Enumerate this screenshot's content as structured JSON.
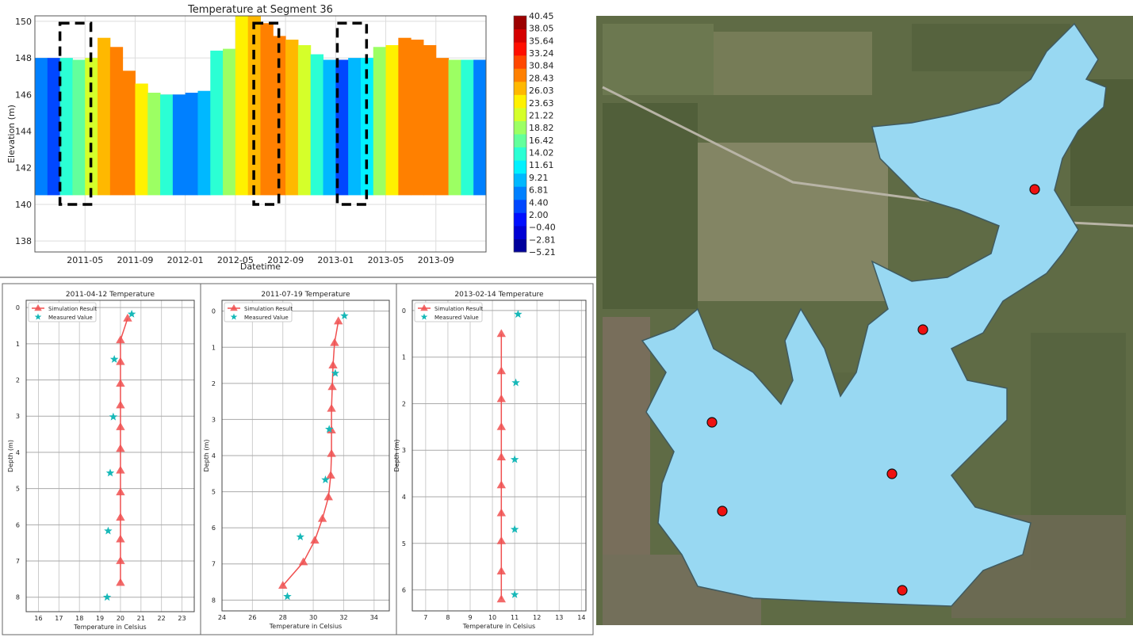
{
  "chart_data": [
    {
      "type": "heatmap",
      "title": "Temperature at Segment 36",
      "xlabel": "Datetime",
      "ylabel": "Elevation (m)",
      "xlim": [
        "2011-01",
        "2014-01"
      ],
      "ylim": [
        137.4,
        150.3
      ],
      "x_ticks": [
        "2011-05",
        "2011-09",
        "2012-01",
        "2012-05",
        "2012-09",
        "2013-01",
        "2013-05",
        "2013-09"
      ],
      "y_ticks": [
        138,
        140,
        142,
        144,
        146,
        148,
        150
      ],
      "grid": true,
      "bottom_elevation": 140.5,
      "columns": [
        {
          "date": "2011-01",
          "surface_elevation": 148.0,
          "temperature": 5
        },
        {
          "date": "2011-02",
          "surface_elevation": 148.0,
          "temperature": 3
        },
        {
          "date": "2011-03",
          "surface_elevation": 148.0,
          "temperature": 14
        },
        {
          "date": "2011-04",
          "surface_elevation": 147.9,
          "temperature": 17
        },
        {
          "date": "2011-05",
          "surface_elevation": 148.0,
          "temperature": 22
        },
        {
          "date": "2011-06",
          "surface_elevation": 149.1,
          "temperature": 27
        },
        {
          "date": "2011-07",
          "surface_elevation": 148.6,
          "temperature": 30
        },
        {
          "date": "2011-08",
          "surface_elevation": 147.3,
          "temperature": 30
        },
        {
          "date": "2011-09",
          "surface_elevation": 146.6,
          "temperature": 25
        },
        {
          "date": "2011-10",
          "surface_elevation": 146.1,
          "temperature": 20
        },
        {
          "date": "2011-11",
          "surface_elevation": 146.0,
          "temperature": 15
        },
        {
          "date": "2011-12",
          "surface_elevation": 146.0,
          "temperature": 7
        },
        {
          "date": "2012-01",
          "surface_elevation": 146.1,
          "temperature": 5
        },
        {
          "date": "2012-02",
          "surface_elevation": 146.2,
          "temperature": 10
        },
        {
          "date": "2012-03",
          "surface_elevation": 148.4,
          "temperature": 13
        },
        {
          "date": "2012-04",
          "surface_elevation": 148.5,
          "temperature": 18
        },
        {
          "date": "2012-05",
          "surface_elevation": 150.3,
          "temperature": 24
        },
        {
          "date": "2012-06",
          "surface_elevation": 150.3,
          "temperature": 27
        },
        {
          "date": "2012-07",
          "surface_elevation": 149.9,
          "temperature": 30
        },
        {
          "date": "2012-08",
          "surface_elevation": 149.2,
          "temperature": 30
        },
        {
          "date": "2012-09",
          "surface_elevation": 149.0,
          "temperature": 27
        },
        {
          "date": "2012-10",
          "surface_elevation": 148.7,
          "temperature": 21
        },
        {
          "date": "2012-11",
          "surface_elevation": 148.2,
          "temperature": 15
        },
        {
          "date": "2012-12",
          "surface_elevation": 147.9,
          "temperature": 8
        },
        {
          "date": "2013-01",
          "surface_elevation": 147.9,
          "temperature": 3
        },
        {
          "date": "2013-02",
          "surface_elevation": 148.0,
          "temperature": 10
        },
        {
          "date": "2013-03",
          "surface_elevation": 148.0,
          "temperature": 12
        },
        {
          "date": "2013-04",
          "surface_elevation": 148.6,
          "temperature": 20
        },
        {
          "date": "2013-05",
          "surface_elevation": 148.7,
          "temperature": 25
        },
        {
          "date": "2013-06",
          "surface_elevation": 149.1,
          "temperature": 29
        },
        {
          "date": "2013-07",
          "surface_elevation": 149.0,
          "temperature": 30
        },
        {
          "date": "2013-08",
          "surface_elevation": 148.7,
          "temperature": 30
        },
        {
          "date": "2013-09",
          "surface_elevation": 148.0,
          "temperature": 28
        },
        {
          "date": "2013-10",
          "surface_elevation": 147.9,
          "temperature": 20
        },
        {
          "date": "2013-11",
          "surface_elevation": 147.9,
          "temperature": 13
        },
        {
          "date": "2013-12",
          "surface_elevation": 147.9,
          "temperature": 5
        }
      ],
      "highlight_boxes": [
        {
          "start": "2011-03",
          "end": "2011-05-15",
          "elevation_range": [
            140,
            149.9
          ]
        },
        {
          "start": "2012-06-15",
          "end": "2012-08-15",
          "elevation_range": [
            140,
            149.9
          ]
        },
        {
          "start": "2013-01-05",
          "end": "2013-03-15",
          "elevation_range": [
            140,
            149.9
          ]
        }
      ],
      "colorbar": {
        "colormap": "jet",
        "levels": [
          "40.45",
          "38.05",
          "35.64",
          "33.24",
          "30.84",
          "28.43",
          "26.03",
          "23.63",
          "21.22",
          "18.82",
          "16.42",
          "14.02",
          "11.61",
          "9.21",
          "6.81",
          "4.40",
          "2.00",
          "−0.40",
          "−2.81",
          "−5.21"
        ]
      }
    },
    {
      "type": "line",
      "title": "2011-04-12 Temperature",
      "xlabel": "Temperature in Celsius",
      "ylabel": "Depth (m)",
      "xlim": [
        15.4,
        23.6
      ],
      "ylim": [
        8.4,
        -0.2
      ],
      "x_ticks": [
        16,
        17,
        18,
        19,
        20,
        21,
        22,
        23
      ],
      "y_ticks": [
        0,
        1,
        2,
        3,
        4,
        5,
        6,
        7,
        8
      ],
      "grid": true,
      "legend": "top-left",
      "series": [
        {
          "name": "Simulation Result",
          "color": "#f05050",
          "marker": "triangle",
          "points": [
            [
              20.35,
              0.3
            ],
            [
              20,
              0.9
            ],
            [
              20,
              1.5
            ],
            [
              20,
              2.1
            ],
            [
              20,
              2.7
            ],
            [
              20,
              3.3
            ],
            [
              20,
              3.9
            ],
            [
              20,
              4.5
            ],
            [
              20,
              5.1
            ],
            [
              20,
              5.8
            ],
            [
              20,
              6.4
            ],
            [
              20,
              7.0
            ],
            [
              20,
              7.6
            ]
          ]
        },
        {
          "name": "Measured Value",
          "color": "#17b8b8",
          "marker": "star",
          "points": [
            [
              20.55,
              0.18
            ],
            [
              19.7,
              1.43
            ],
            [
              19.65,
              3.02
            ],
            [
              19.5,
              4.57
            ],
            [
              19.4,
              6.17
            ],
            [
              19.35,
              8.0
            ]
          ]
        }
      ]
    },
    {
      "type": "line",
      "title": "2011-07-19 Temperature",
      "xlabel": "Temperature in Celsius",
      "ylabel": "Depth (m)",
      "xlim": [
        24,
        35
      ],
      "ylim": [
        8.3,
        -0.3
      ],
      "x_ticks": [
        24,
        26,
        28,
        30,
        32,
        34
      ],
      "y_ticks": [
        0,
        1,
        2,
        3,
        4,
        5,
        6,
        7,
        8
      ],
      "grid": true,
      "legend": "top-left",
      "series": [
        {
          "name": "Simulation Result",
          "color": "#f05050",
          "marker": "triangle",
          "points": [
            [
              31.65,
              0.28
            ],
            [
              31.4,
              0.88
            ],
            [
              31.3,
              1.5
            ],
            [
              31.25,
              2.1
            ],
            [
              31.2,
              2.7
            ],
            [
              31.2,
              3.3
            ],
            [
              31.2,
              3.95
            ],
            [
              31.15,
              4.55
            ],
            [
              31.0,
              5.15
            ],
            [
              30.6,
              5.75
            ],
            [
              30.1,
              6.35
            ],
            [
              29.35,
              6.95
            ],
            [
              28.0,
              7.6
            ]
          ]
        },
        {
          "name": "Measured Value",
          "color": "#17b8b8",
          "marker": "star",
          "points": [
            [
              32.05,
              0.13
            ],
            [
              31.45,
              1.72
            ],
            [
              31.05,
              3.27
            ],
            [
              30.8,
              4.67
            ],
            [
              29.15,
              6.25
            ],
            [
              28.3,
              7.9
            ]
          ]
        }
      ]
    },
    {
      "type": "line",
      "title": "2013-02-14 Temperature",
      "xlabel": "Temperature in Celsius",
      "ylabel": "Depth (m)",
      "xlim": [
        6.4,
        14.2
      ],
      "ylim": [
        6.45,
        -0.22
      ],
      "x_ticks": [
        7,
        8,
        9,
        10,
        11,
        12,
        13,
        14
      ],
      "y_ticks": [
        0,
        1,
        2,
        3,
        4,
        5,
        6
      ],
      "grid": true,
      "legend": "top-left",
      "series": [
        {
          "name": "Simulation Result",
          "color": "#f05050",
          "marker": "triangle",
          "points": [
            [
              10.4,
              0.5
            ],
            [
              10.4,
              1.3
            ],
            [
              10.4,
              1.9
            ],
            [
              10.4,
              2.5
            ],
            [
              10.4,
              3.15
            ],
            [
              10.4,
              3.75
            ],
            [
              10.4,
              4.35
            ],
            [
              10.4,
              4.95
            ],
            [
              10.4,
              5.6
            ],
            [
              10.4,
              6.2
            ]
          ]
        },
        {
          "name": "Measured Value",
          "color": "#17b8b8",
          "marker": "star",
          "points": [
            [
              11.15,
              0.08
            ],
            [
              11.05,
              1.55
            ],
            [
              11.0,
              3.2
            ],
            [
              11.0,
              4.7
            ],
            [
              11.0,
              6.1
            ]
          ]
        }
      ]
    }
  ],
  "map": {
    "lake_color": "#98d8f2",
    "marker_color": "#ee1111",
    "marker_count": 6
  }
}
